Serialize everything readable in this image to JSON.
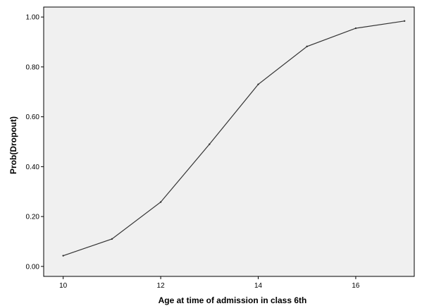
{
  "chart_data": {
    "type": "line",
    "title": "",
    "xlabel": "Age at time of admission in class 6th",
    "ylabel": "Prob(Dropout)",
    "xlim": [
      9.6,
      17.2
    ],
    "ylim": [
      -0.04,
      1.04
    ],
    "x_ticks": [
      10,
      12,
      14,
      16
    ],
    "x_tick_labels": [
      "10",
      "12",
      "14",
      "16"
    ],
    "y_ticks": [
      0.0,
      0.2,
      0.4,
      0.6,
      0.8,
      1.0
    ],
    "y_tick_labels": [
      "0.00",
      "0.20",
      "0.40",
      "0.60",
      "0.80",
      "1.00"
    ],
    "grid": false,
    "plot_background": "#f0f0f0",
    "line_color": "#333333",
    "x": [
      10,
      11,
      12,
      13,
      14,
      15,
      16,
      17
    ],
    "y": [
      0.043,
      0.11,
      0.258,
      0.49,
      0.73,
      0.882,
      0.955,
      0.984
    ]
  }
}
